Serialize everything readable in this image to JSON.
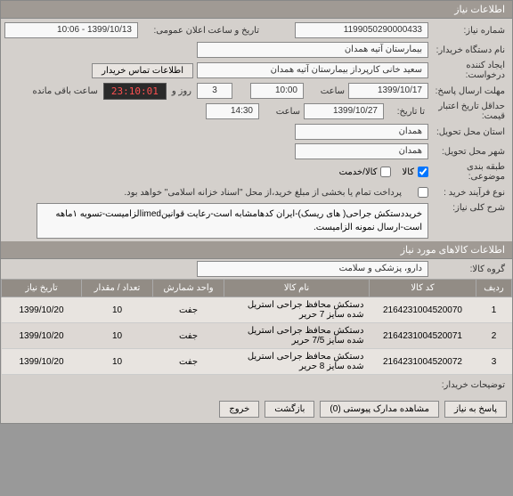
{
  "sections": {
    "info": "اطلاعات نیاز",
    "buyer_contact": "اطلاعات تماس خریدار",
    "goods": "اطلاعات کالاهای مورد نیاز"
  },
  "labels": {
    "need_no": "شماره نیاز:",
    "announce_dt": "تاریخ و ساعت اعلان عمومی:",
    "buyer_org": "نام دستگاه خریدار:",
    "creator": "ایجاد کننده درخواست:",
    "reply_deadline": "مهلت ارسال پاسخ:",
    "hour": "ساعت",
    "day_and": "روز و",
    "remaining": "ساعت باقی مانده",
    "price_valid": "حداقل تاریخ اعتبار قیمت:",
    "to_date": "تا تاریخ:",
    "delivery_province": "استان محل تحویل:",
    "delivery_city": "شهر محل تحویل:",
    "subject_class": "طبقه بندی موضوعی:",
    "goods_chk": "کالا",
    "service_chk": "کالا/خدمت",
    "purchase_type": "نوع فرآیند خرید :",
    "payment_note": "پرداخت تمام یا بخشی از مبلغ خرید،از محل \"اسناد خزانه اسلامی\" خواهد بود.",
    "general_desc": "شرح کلی نیاز:",
    "goods_group": "گروه کالا:",
    "buyer_notes": "توضیحات خریدار:"
  },
  "values": {
    "need_no": "1199050290000433",
    "announce_dt": "1399/10/13 - 10:06",
    "buyer_org": "بیمارستان آتیه همدان",
    "creator": "سعید خانی کارپرداز بیمارستان آتیه همدان",
    "reply_date": "1399/10/17",
    "reply_time": "10:00",
    "days_left": "3",
    "countdown": "23:10:01",
    "valid_date": "1399/10/27",
    "valid_time": "14:30",
    "province": "همدان",
    "city": "همدان",
    "purchase_type": "",
    "general_desc": "خریددستکش جراحی( های ریسک)-ایران کدهامشابه است-رعایت قوانینimedالزامیست-تسویه ۱ماهه است-ارسال نمونه الزامیست.",
    "goods_group": "دارو، پزشکی و سلامت"
  },
  "table": {
    "headers": {
      "row": "ردیف",
      "code": "کد کالا",
      "name": "نام کالا",
      "unit": "واحد شمارش",
      "qty": "تعداد / مقدار",
      "need_date": "تاریخ نیاز"
    },
    "rows": [
      {
        "n": "1",
        "code": "2164231004520070",
        "name": "دستکش محافظ جراحی استریل شده سایز 7 حریر",
        "unit": "جفت",
        "qty": "10",
        "date": "1399/10/20"
      },
      {
        "n": "2",
        "code": "2164231004520071",
        "name": "دستکش محافظ جراحی استریل شده سایز 7/5 حریر",
        "unit": "جفت",
        "qty": "10",
        "date": "1399/10/20"
      },
      {
        "n": "3",
        "code": "2164231004520072",
        "name": "دستکش محافظ جراحی استریل شده سایز 8 حریر",
        "unit": "جفت",
        "qty": "10",
        "date": "1399/10/20"
      }
    ]
  },
  "buttons": {
    "reply": "پاسخ به نیاز",
    "attachments": "مشاهده مدارک پیوستی (0)",
    "back": "بازگشت",
    "exit": "خروج"
  }
}
